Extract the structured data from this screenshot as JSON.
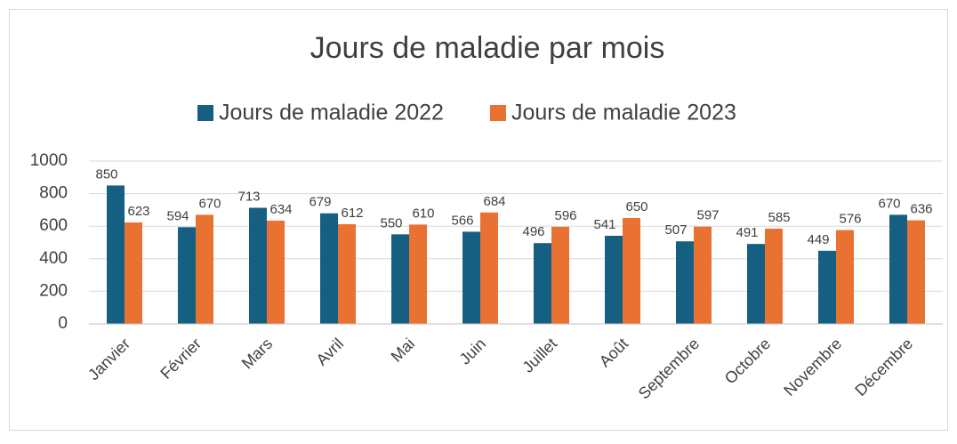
{
  "chart_data": {
    "type": "bar",
    "title": "Jours de maladie par mois",
    "categories": [
      "Janvier",
      "Février",
      "Mars",
      "Avril",
      "Mai",
      "Juin",
      "Juillet",
      "Août",
      "Septembre",
      "Octobre",
      "Novembre",
      "Décembre"
    ],
    "series": [
      {
        "name": "Jours de maladie 2022",
        "color": "#156082",
        "values": [
          850,
          594,
          713,
          679,
          550,
          566,
          496,
          541,
          507,
          491,
          449,
          670
        ]
      },
      {
        "name": "Jours de maladie 2023",
        "color": "#e97132",
        "values": [
          623,
          670,
          634,
          612,
          610,
          684,
          596,
          650,
          597,
          585,
          576,
          636
        ]
      }
    ],
    "ylim": [
      0,
      1000
    ],
    "yticks": [
      0,
      200,
      400,
      600,
      800,
      1000
    ],
    "grid": true,
    "legend": "top"
  }
}
